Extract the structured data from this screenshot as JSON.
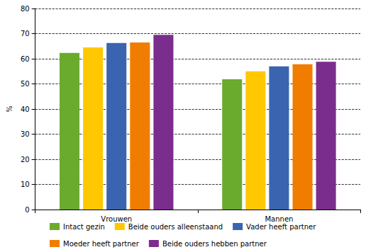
{
  "chart_data": {
    "type": "bar",
    "categories": [
      "Vrouwen",
      "Mannen"
    ],
    "series": [
      {
        "name": "Intact gezin",
        "color": "#6aab2e",
        "values": [
          62.3,
          51.8
        ]
      },
      {
        "name": "Beide ouders alleenstaand",
        "color": "#ffc800",
        "values": [
          64.5,
          55.0
        ]
      },
      {
        "name": "Vader heeft partner",
        "color": "#3a64b0",
        "values": [
          66.3,
          57.0
        ]
      },
      {
        "name": "Moeder heeft partner",
        "color": "#f07d00",
        "values": [
          66.5,
          57.8
        ]
      },
      {
        "name": "Beide ouders hebben partner",
        "color": "#7b2d8e",
        "values": [
          69.5,
          58.8
        ]
      }
    ],
    "y_label": "%",
    "ylim": [
      0,
      80
    ],
    "yticks": [
      0,
      10,
      20,
      30,
      40,
      50,
      60,
      70,
      80
    ],
    "grid": true,
    "legend": "bottom"
  }
}
